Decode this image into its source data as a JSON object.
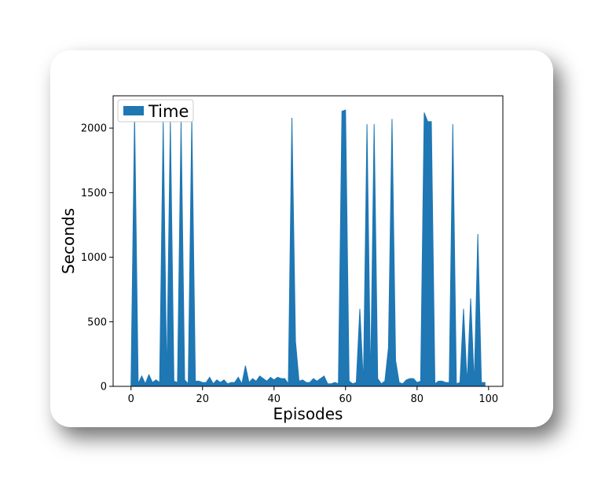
{
  "chart_data": {
    "type": "area",
    "title": "",
    "xlabel": "Episodes",
    "ylabel": "Seconds",
    "xlim": [
      -5,
      104
    ],
    "ylim": [
      0,
      2250
    ],
    "xticks": [
      0,
      20,
      40,
      60,
      80,
      100
    ],
    "yticks": [
      0,
      500,
      1000,
      1500,
      2000
    ],
    "grid": false,
    "legend": {
      "placement": "top-left"
    },
    "series": [
      {
        "name": "Time",
        "color": "#1f77b4",
        "x": [
          0,
          1,
          2,
          3,
          4,
          5,
          6,
          7,
          8,
          9,
          10,
          11,
          12,
          13,
          14,
          15,
          16,
          17,
          18,
          19,
          20,
          21,
          22,
          23,
          24,
          25,
          26,
          27,
          28,
          29,
          30,
          31,
          32,
          33,
          34,
          35,
          36,
          37,
          38,
          39,
          40,
          41,
          42,
          43,
          44,
          45,
          46,
          47,
          48,
          49,
          50,
          51,
          52,
          53,
          54,
          55,
          56,
          57,
          58,
          59,
          60,
          61,
          62,
          63,
          64,
          65,
          66,
          67,
          68,
          69,
          70,
          71,
          72,
          73,
          74,
          75,
          76,
          77,
          78,
          79,
          80,
          81,
          82,
          83,
          84,
          85,
          86,
          87,
          88,
          89,
          90,
          91,
          92,
          93,
          94,
          95,
          96,
          97,
          98,
          99
        ],
        "y": [
          20,
          2100,
          20,
          80,
          20,
          90,
          30,
          50,
          30,
          2050,
          40,
          2050,
          40,
          30,
          2050,
          50,
          20,
          2070,
          40,
          40,
          30,
          30,
          70,
          20,
          50,
          30,
          50,
          20,
          30,
          30,
          70,
          20,
          160,
          30,
          60,
          40,
          80,
          60,
          40,
          70,
          50,
          70,
          60,
          60,
          20,
          2080,
          350,
          40,
          50,
          30,
          30,
          60,
          40,
          60,
          80,
          20,
          20,
          30,
          20,
          2130,
          2140,
          40,
          20,
          30,
          600,
          20,
          2030,
          20,
          2030,
          60,
          20,
          40,
          300,
          2070,
          200,
          30,
          20,
          50,
          60,
          60,
          30,
          40,
          2120,
          2050,
          2050,
          20,
          40,
          40,
          30,
          30,
          2030,
          20,
          30,
          600,
          20,
          680,
          20,
          1180,
          30,
          30
        ]
      }
    ]
  }
}
